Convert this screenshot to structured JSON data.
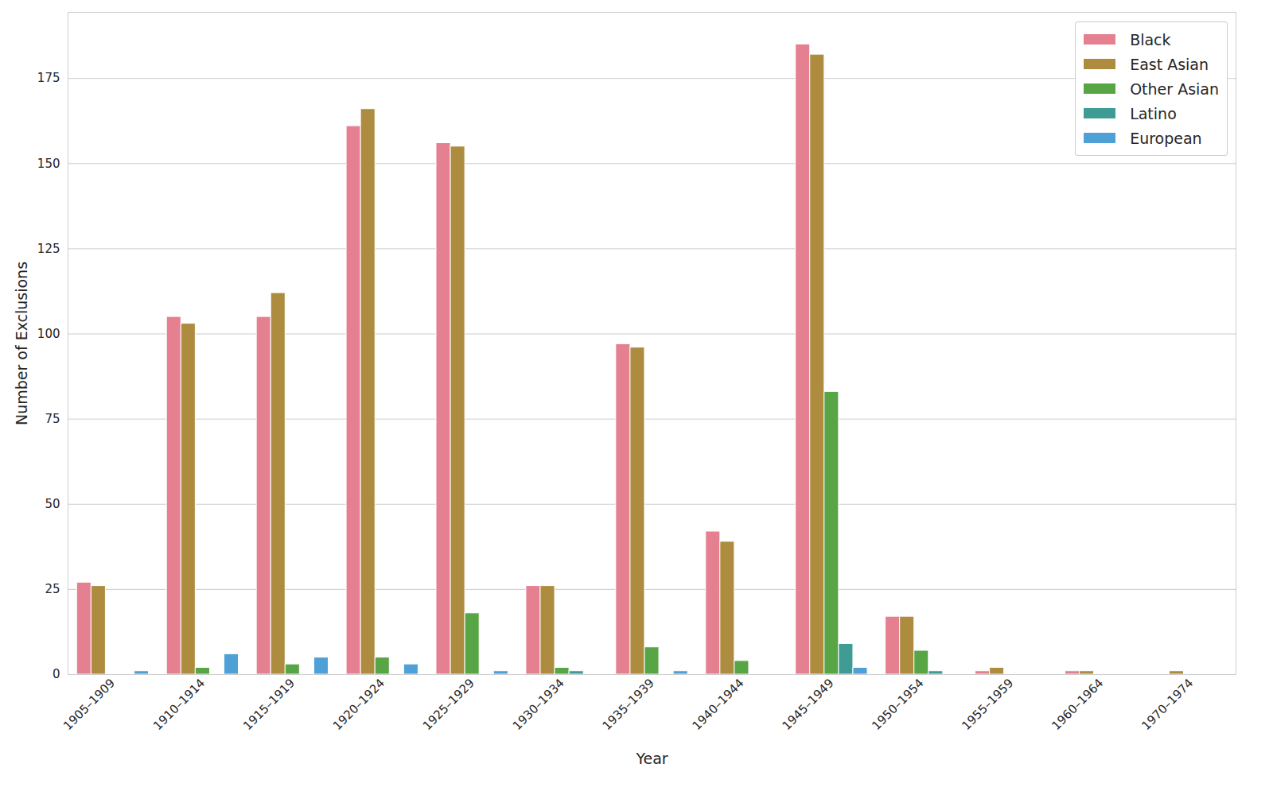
{
  "chart_data": {
    "type": "bar",
    "x_label": "Year",
    "y_label": "Number of Exclusions",
    "categories": [
      "1905–1909",
      "1910–1914",
      "1915–1919",
      "1920–1924",
      "1925–1929",
      "1930–1934",
      "1935–1939",
      "1940–1944",
      "1945–1949",
      "1950–1954",
      "1955–1959",
      "1960–1964",
      "1970–1974"
    ],
    "series": [
      {
        "name": "Black",
        "color": "#e58090",
        "values": [
          27,
          105,
          105,
          161,
          156,
          26,
          97,
          42,
          185,
          17,
          1,
          1,
          0
        ]
      },
      {
        "name": "East Asian",
        "color": "#ad8c40",
        "values": [
          26,
          103,
          112,
          166,
          155,
          26,
          96,
          39,
          182,
          17,
          2,
          1,
          1
        ]
      },
      {
        "name": "Other Asian",
        "color": "#58a545",
        "values": [
          0,
          2,
          3,
          5,
          18,
          2,
          8,
          4,
          83,
          7,
          0,
          0,
          0
        ]
      },
      {
        "name": "Latino",
        "color": "#3f9c95",
        "values": [
          0,
          0,
          0,
          0,
          0,
          1,
          0,
          0,
          9,
          1,
          0,
          0,
          0
        ]
      },
      {
        "name": "European",
        "color": "#50a0d8",
        "values": [
          1,
          6,
          5,
          3,
          1,
          0,
          1,
          0,
          2,
          0,
          0,
          0,
          0
        ]
      }
    ],
    "ylim": [
      0,
      194.4
    ],
    "yticks": [
      0,
      25,
      50,
      75,
      100,
      125,
      150,
      175
    ],
    "grid": true,
    "legend": "upper right"
  }
}
